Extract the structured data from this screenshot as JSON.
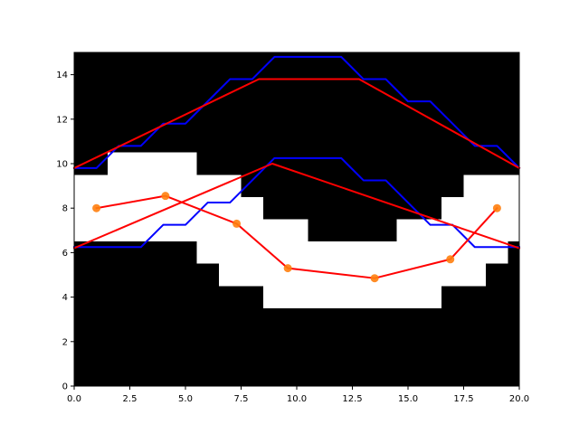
{
  "chart_data": {
    "type": "line",
    "title": "",
    "xlabel": "",
    "ylabel": "",
    "xlim": [
      0,
      20
    ],
    "ylim": [
      0,
      15
    ],
    "grid": false,
    "legend": "none",
    "x_ticks": [
      0.0,
      2.5,
      5.0,
      7.5,
      10.0,
      12.5,
      15.0,
      17.5,
      20.0
    ],
    "x_tick_labels": [
      "0.0",
      "2.5",
      "5.0",
      "7.5",
      "10.0",
      "12.5",
      "15.0",
      "17.5",
      "20.0"
    ],
    "y_ticks": [
      0,
      2,
      4,
      6,
      8,
      10,
      12,
      14
    ],
    "y_tick_labels": [
      "0",
      "2",
      "4",
      "6",
      "8",
      "10",
      "12",
      "14"
    ],
    "background_mask": {
      "colors": {
        "blocked": "#000000",
        "free": "#ffffff"
      },
      "free_columns": [
        {
          "x0": 0,
          "x1": 1.5,
          "y0": 6.5,
          "y1": 9.5
        },
        {
          "x0": 1.5,
          "x1": 5.5,
          "y0": 6.5,
          "y1": 10.5
        },
        {
          "x0": 5.5,
          "x1": 6.5,
          "y0": 5.5,
          "y1": 9.5
        },
        {
          "x0": 6.5,
          "x1": 7.5,
          "y0": 4.5,
          "y1": 9.5
        },
        {
          "x0": 7.5,
          "x1": 8.5,
          "y0": 4.5,
          "y1": 8.5
        },
        {
          "x0": 8.5,
          "x1": 10.5,
          "y0": 3.5,
          "y1": 7.5
        },
        {
          "x0": 10.5,
          "x1": 14.5,
          "y0": 3.5,
          "y1": 6.5
        },
        {
          "x0": 14.5,
          "x1": 16.5,
          "y0": 3.5,
          "y1": 7.5
        },
        {
          "x0": 16.5,
          "x1": 17.5,
          "y0": 4.5,
          "y1": 8.5
        },
        {
          "x0": 17.5,
          "x1": 18.5,
          "y0": 4.5,
          "y1": 9.5
        },
        {
          "x0": 18.5,
          "x1": 19.5,
          "y0": 5.5,
          "y1": 9.5
        },
        {
          "x0": 19.5,
          "x1": 20,
          "y0": 6.5,
          "y1": 9.5
        }
      ]
    },
    "series": [
      {
        "kind": "step-line",
        "color": "#0000ff",
        "x": [
          0,
          1,
          2,
          3,
          4,
          5,
          6,
          7,
          8,
          9,
          10,
          11,
          12,
          13,
          14,
          15,
          16,
          17,
          18,
          19,
          20
        ],
        "y": [
          6.25,
          6.25,
          6.25,
          6.25,
          7.25,
          7.25,
          8.25,
          8.25,
          9.25,
          10.25,
          10.25,
          10.25,
          10.25,
          9.25,
          9.25,
          8.25,
          7.25,
          7.25,
          6.25,
          6.25,
          6.25
        ]
      },
      {
        "kind": "step-line",
        "color": "#0000ff",
        "x": [
          0,
          1,
          2,
          3,
          4,
          5,
          6,
          7,
          8,
          9,
          10,
          11,
          12,
          13,
          14,
          15,
          16,
          17,
          18,
          19,
          20
        ],
        "y": [
          9.8,
          9.8,
          10.8,
          10.8,
          11.8,
          11.8,
          12.8,
          13.8,
          13.8,
          14.8,
          14.8,
          14.8,
          14.8,
          13.8,
          13.8,
          12.8,
          12.8,
          11.8,
          10.8,
          10.8,
          9.8
        ]
      },
      {
        "kind": "line",
        "color": "#ff0000",
        "x": [
          0,
          8.9,
          20
        ],
        "y": [
          6.2,
          10.0,
          6.2
        ]
      },
      {
        "kind": "line",
        "color": "#ff0000",
        "x": [
          0,
          8.3,
          12.8,
          20
        ],
        "y": [
          9.8,
          13.8,
          13.8,
          9.8
        ]
      },
      {
        "kind": "line-with-markers",
        "color": "#ff0000",
        "marker_color": "#ff7f0e",
        "x": [
          1,
          4.1,
          7.3,
          9.6,
          13.5,
          16.9,
          19
        ],
        "y": [
          8.0,
          8.55,
          7.3,
          5.3,
          4.85,
          5.7,
          8.0
        ]
      }
    ]
  }
}
